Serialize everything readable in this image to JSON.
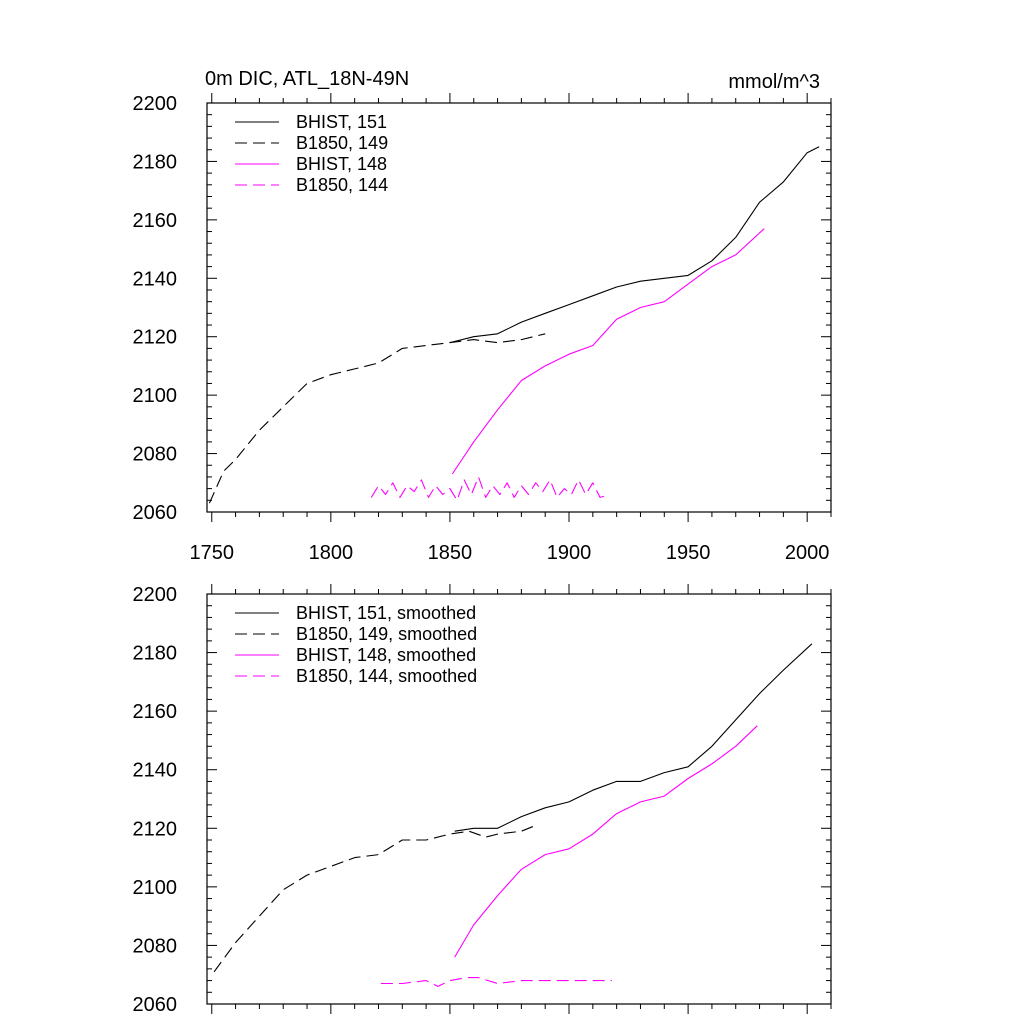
{
  "chart_data": [
    {
      "type": "line",
      "title": "0m DIC, ATL_18N-49N",
      "units": "mmol/m^3",
      "xlim": [
        1748,
        2010
      ],
      "ylim": [
        2060,
        2200
      ],
      "xticks": [
        1750,
        1800,
        1850,
        1900,
        1950,
        2000
      ],
      "yticks": [
        2060,
        2080,
        2100,
        2120,
        2140,
        2160,
        2180,
        2200
      ],
      "show_x_tick_labels": true,
      "legend_position": "top-left",
      "series": [
        {
          "name": "BHIST, 151",
          "color": "#000000",
          "dash": "solid",
          "x": [
            1850,
            1860,
            1870,
            1880,
            1890,
            1900,
            1910,
            1920,
            1930,
            1940,
            1950,
            1960,
            1970,
            1980,
            1990,
            2000,
            2005
          ],
          "y": [
            2118,
            2120,
            2121,
            2125,
            2128,
            2131,
            2134,
            2137,
            2139,
            2140,
            2141,
            2146,
            2154,
            2166,
            2173,
            2183,
            2185
          ]
        },
        {
          "name": "B1850, 149",
          "color": "#000000",
          "dash": "dashed",
          "x": [
            1749,
            1755,
            1760,
            1770,
            1780,
            1790,
            1800,
            1810,
            1820,
            1830,
            1840,
            1850,
            1860,
            1870,
            1880,
            1890
          ],
          "y": [
            2063,
            2074,
            2078,
            2088,
            2096,
            2104,
            2107,
            2109,
            2111,
            2116,
            2117,
            2118,
            2119,
            2118,
            2119,
            2121
          ]
        },
        {
          "name": "BHIST, 148",
          "color": "#ff00ff",
          "dash": "solid",
          "x": [
            1851,
            1860,
            1870,
            1880,
            1890,
            1900,
            1910,
            1920,
            1930,
            1940,
            1950,
            1960,
            1970,
            1982
          ],
          "y": [
            2073,
            2084,
            2095,
            2105,
            2110,
            2114,
            2117,
            2126,
            2130,
            2132,
            2138,
            2144,
            2148,
            2157
          ]
        },
        {
          "name": "B1850, 144",
          "color": "#ff00ff",
          "dash": "dashed",
          "x": [
            1817,
            1820,
            1823,
            1826,
            1829,
            1832,
            1835,
            1838,
            1841,
            1844,
            1847,
            1850,
            1853,
            1856,
            1859,
            1862,
            1865,
            1868,
            1871,
            1874,
            1877,
            1880,
            1883,
            1886,
            1889,
            1892,
            1895,
            1898,
            1901,
            1904,
            1907,
            1910,
            1913,
            1917
          ],
          "y": [
            2065,
            2069,
            2066,
            2070,
            2065,
            2069,
            2067,
            2071,
            2065,
            2069,
            2066,
            2068,
            2064,
            2071,
            2066,
            2072,
            2065,
            2069,
            2066,
            2070,
            2065,
            2069,
            2066,
            2070,
            2067,
            2071,
            2065,
            2068,
            2066,
            2071,
            2066,
            2070,
            2065,
            2066
          ]
        }
      ]
    },
    {
      "type": "line",
      "title": "",
      "units": "",
      "xlim": [
        1748,
        2010
      ],
      "ylim": [
        2060,
        2200
      ],
      "xticks": [
        1750,
        1800,
        1850,
        1900,
        1950,
        2000
      ],
      "yticks": [
        2060,
        2080,
        2100,
        2120,
        2140,
        2160,
        2180,
        2200
      ],
      "show_x_tick_labels": false,
      "legend_position": "top-left",
      "series": [
        {
          "name": "BHIST, 151, smoothed",
          "color": "#000000",
          "dash": "solid",
          "x": [
            1852,
            1860,
            1870,
            1880,
            1890,
            1900,
            1910,
            1920,
            1930,
            1940,
            1950,
            1960,
            1970,
            1980,
            1990,
            2002
          ],
          "y": [
            2119,
            2120,
            2120,
            2124,
            2127,
            2129,
            2133,
            2136,
            2136,
            2139,
            2141,
            2148,
            2157,
            2166,
            2174,
            2183
          ]
        },
        {
          "name": "B1850, 149, smoothed",
          "color": "#000000",
          "dash": "dashed",
          "x": [
            1751,
            1760,
            1770,
            1780,
            1790,
            1800,
            1810,
            1820,
            1830,
            1840,
            1850,
            1858,
            1865,
            1870,
            1880,
            1886
          ],
          "y": [
            2071,
            2081,
            2090,
            2099,
            2104,
            2107,
            2110,
            2111,
            2116,
            2116,
            2118,
            2119,
            2117,
            2118,
            2119,
            2121
          ]
        },
        {
          "name": "BHIST, 148, smoothed",
          "color": "#ff00ff",
          "dash": "solid",
          "x": [
            1852,
            1860,
            1870,
            1880,
            1890,
            1900,
            1910,
            1920,
            1930,
            1940,
            1950,
            1960,
            1970,
            1979
          ],
          "y": [
            2076,
            2087,
            2097,
            2106,
            2111,
            2113,
            2118,
            2125,
            2129,
            2131,
            2137,
            2142,
            2148,
            2155
          ]
        },
        {
          "name": "B1850, 144, smoothed",
          "color": "#ff00ff",
          "dash": "dashed",
          "x": [
            1821,
            1830,
            1840,
            1845,
            1850,
            1857,
            1862,
            1870,
            1880,
            1890,
            1900,
            1910,
            1918
          ],
          "y": [
            2067,
            2067,
            2068,
            2066,
            2068,
            2069,
            2069,
            2067,
            2068,
            2068,
            2068,
            2068,
            2068
          ]
        }
      ]
    }
  ]
}
